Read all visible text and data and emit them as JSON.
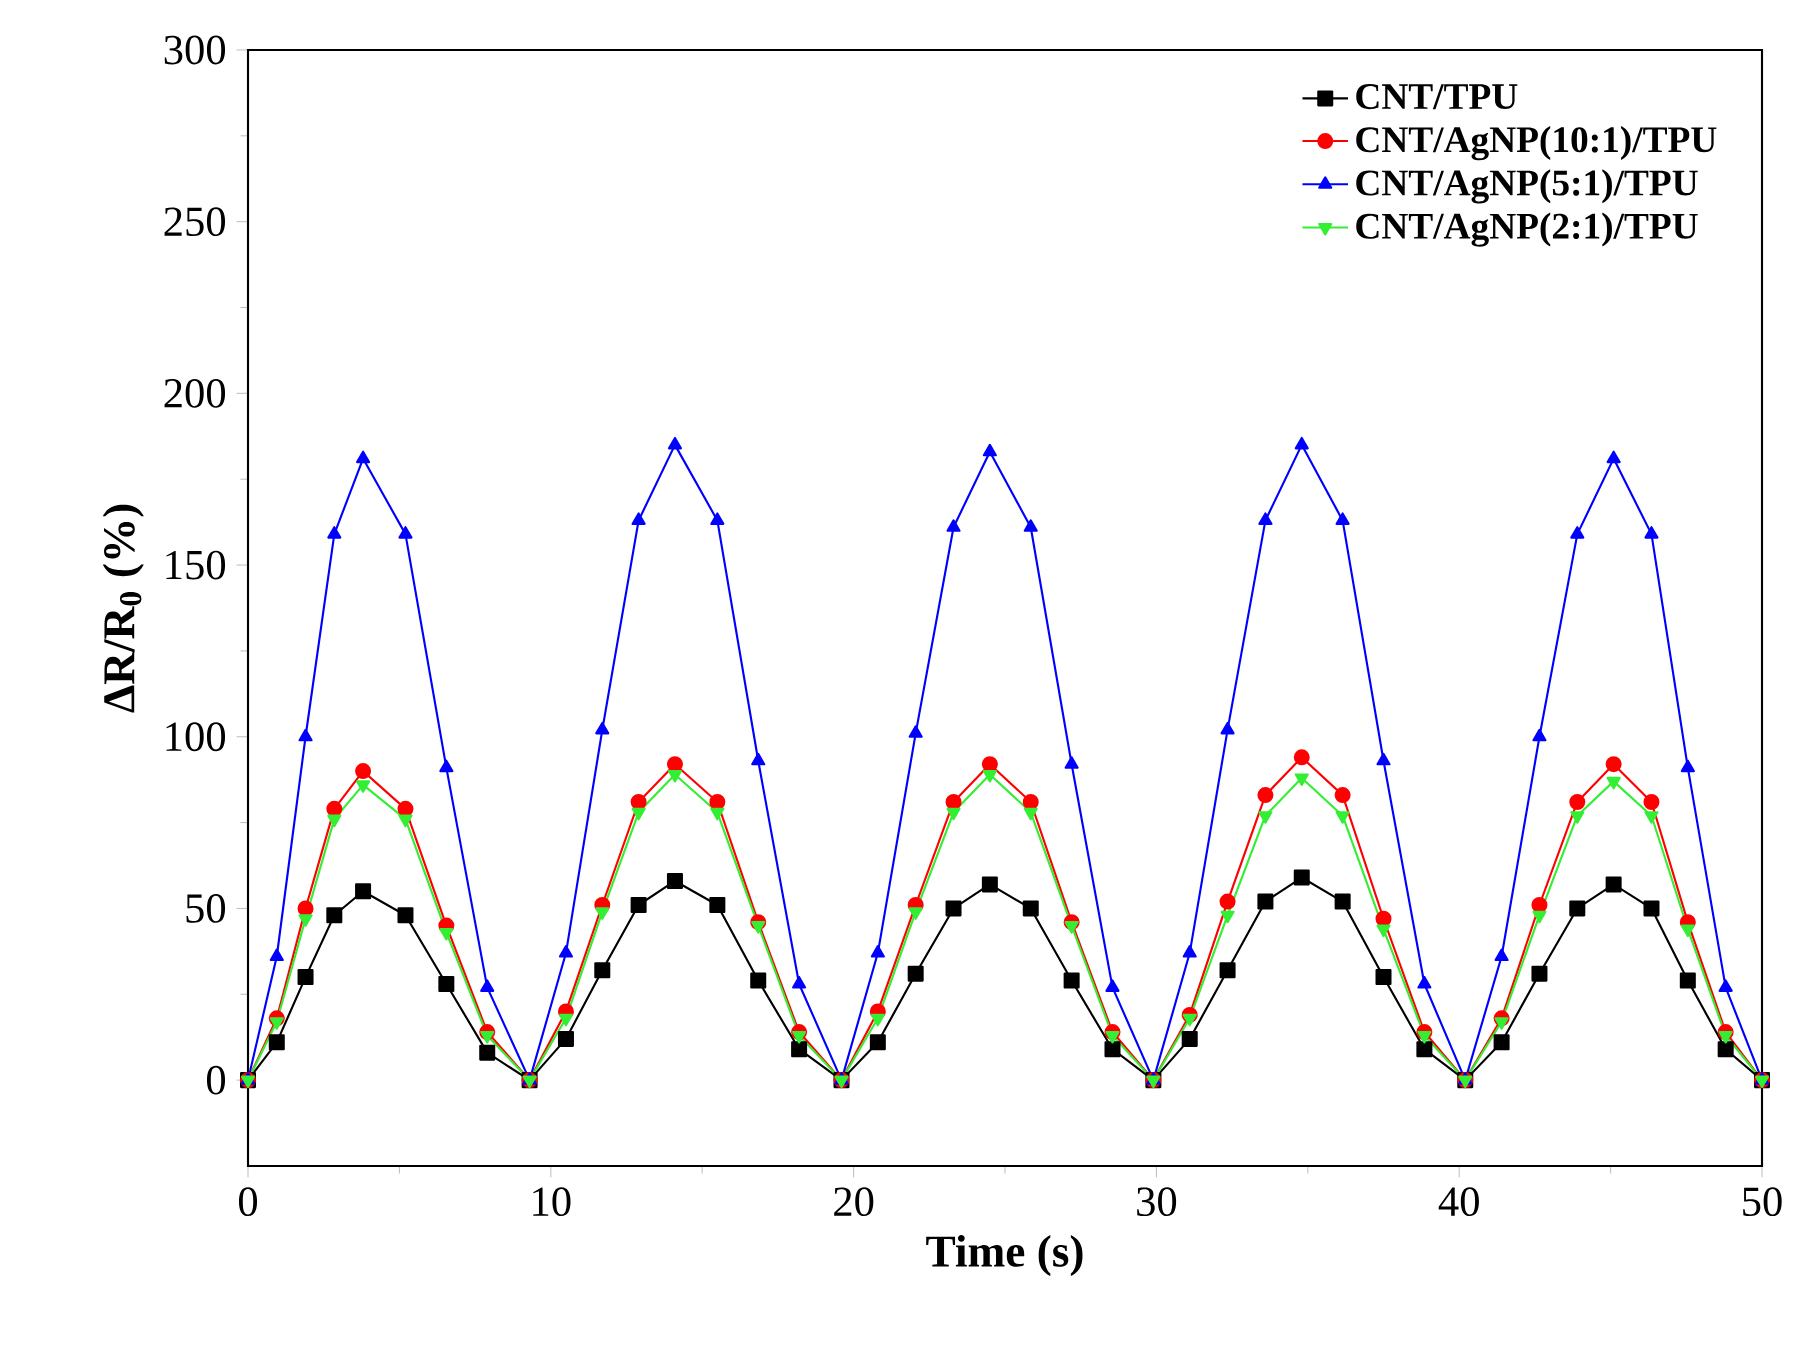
{
  "chart_data": {
    "type": "line",
    "xlabel": "Time (s)",
    "ylabel": "ΔR/R$_{0}$ (%)",
    "x": [
      0,
      0.95,
      1.9,
      2.85,
      3.8,
      5.2,
      6.55,
      7.9,
      9.3,
      10.5,
      11.7,
      12.9,
      14.1,
      15.5,
      16.85,
      18.2,
      19.6,
      20.8,
      22.05,
      23.3,
      24.5,
      25.85,
      27.2,
      28.55,
      29.9,
      31.1,
      32.35,
      33.6,
      34.8,
      36.15,
      37.5,
      38.85,
      40.2,
      41.4,
      42.65,
      43.9,
      45.1,
      46.35,
      47.55,
      48.8,
      50
    ],
    "xlim": [
      0,
      50
    ],
    "xticks": [
      0,
      10,
      20,
      30,
      40,
      50
    ],
    "ylim": [
      -25,
      300
    ],
    "yticks": [
      0,
      50,
      100,
      150,
      200,
      250,
      300
    ],
    "grid": false,
    "legend": "top right",
    "line_style": "solid",
    "series": [
      {
        "name": "CNT/TPU",
        "color": "#000000",
        "marker": "square",
        "values": [
          0,
          11,
          30,
          48,
          55,
          48,
          28,
          8,
          0,
          12,
          32,
          51,
          58,
          51,
          29,
          9,
          0,
          11,
          31,
          50,
          57,
          50,
          29,
          9,
          0,
          12,
          32,
          52,
          59,
          52,
          30,
          9,
          0,
          11,
          31,
          50,
          57,
          50,
          29,
          9,
          0
        ]
      },
      {
        "name": "CNT/AgNP(10:1)/TPU",
        "color": "#ff0000",
        "marker": "circle",
        "values": [
          0,
          18,
          50,
          79,
          90,
          79,
          45,
          14,
          0,
          20,
          51,
          81,
          92,
          81,
          46,
          14,
          0,
          20,
          51,
          81,
          92,
          81,
          46,
          14,
          0,
          19,
          52,
          83,
          94,
          83,
          47,
          14,
          0,
          18,
          51,
          81,
          92,
          81,
          46,
          14,
          0
        ]
      },
      {
        "name": "CNT/AgNP(5:1)/TPU",
        "color": "#0000ff",
        "marker": "triangle",
        "values": [
          0,
          36,
          100,
          159,
          181,
          159,
          91,
          27,
          0,
          37,
          102,
          163,
          185,
          163,
          93,
          28,
          0,
          37,
          101,
          161,
          183,
          161,
          92,
          27,
          0,
          37,
          102,
          163,
          185,
          163,
          93,
          28,
          0,
          36,
          100,
          159,
          181,
          159,
          91,
          27,
          0
        ]
      },
      {
        "name": "CNT/AgNP(2:1)/TPU",
        "color": "#33ee33",
        "marker": "triangle-down",
        "values": [
          0,
          17,
          47,
          76,
          86,
          76,
          43,
          13,
          0,
          18,
          49,
          78,
          89,
          78,
          45,
          13,
          0,
          18,
          49,
          78,
          89,
          78,
          45,
          13,
          0,
          18,
          48,
          77,
          88,
          77,
          44,
          13,
          0,
          17,
          48,
          77,
          87,
          77,
          44,
          13,
          0
        ]
      }
    ]
  }
}
